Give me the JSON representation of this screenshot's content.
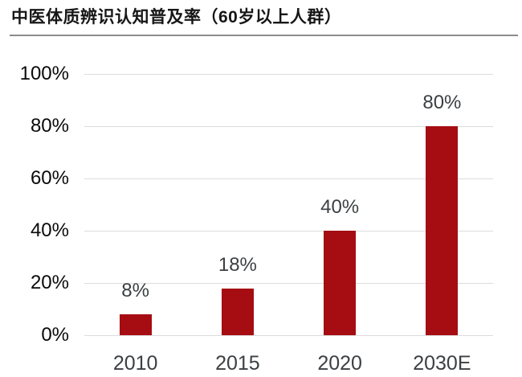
{
  "title": "中医体质辨识认知普及率（60岁以上人群）",
  "colors": {
    "bar": "#a50d12",
    "grid": "#dcdcdc",
    "divider": "#8c8c8c",
    "value_label_text": "#3c4043",
    "x_axis_text": "#3c4043",
    "y_axis_text": "#0a0a0a",
    "title_text": "#161616",
    "background": "#ffffff"
  },
  "chart_data": {
    "type": "bar",
    "title": "中医体质辨识认知普及率（60岁以上人群）",
    "categories": [
      "2010",
      "2015",
      "2020",
      "2030E"
    ],
    "values": [
      8,
      18,
      40,
      80
    ],
    "value_labels": [
      "8%",
      "18%",
      "40%",
      "80%"
    ],
    "xlabel": "",
    "ylabel": "",
    "ylim": [
      0,
      100
    ],
    "ytick_values": [
      0,
      20,
      40,
      60,
      80,
      100
    ],
    "ytick_labels": [
      "0%",
      "20%",
      "40%",
      "60%",
      "80%",
      "100%"
    ],
    "grid": "horizontal",
    "legend": "none",
    "bar_color": "#a50d12"
  }
}
